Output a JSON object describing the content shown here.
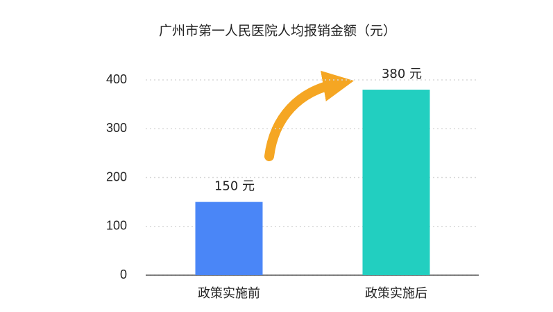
{
  "chart_data": {
    "type": "bar",
    "title": "广州市第一人民医院人均报销金额（元）",
    "categories": [
      "政策实施前",
      "政策实施后"
    ],
    "values": [
      150,
      380
    ],
    "value_labels": [
      "150 元",
      "380 元"
    ],
    "colors": [
      "#4a86f7",
      "#22cfc0"
    ],
    "ylim": [
      0,
      400
    ],
    "yticks": [
      0,
      100,
      200,
      300,
      400
    ],
    "grid": true
  }
}
